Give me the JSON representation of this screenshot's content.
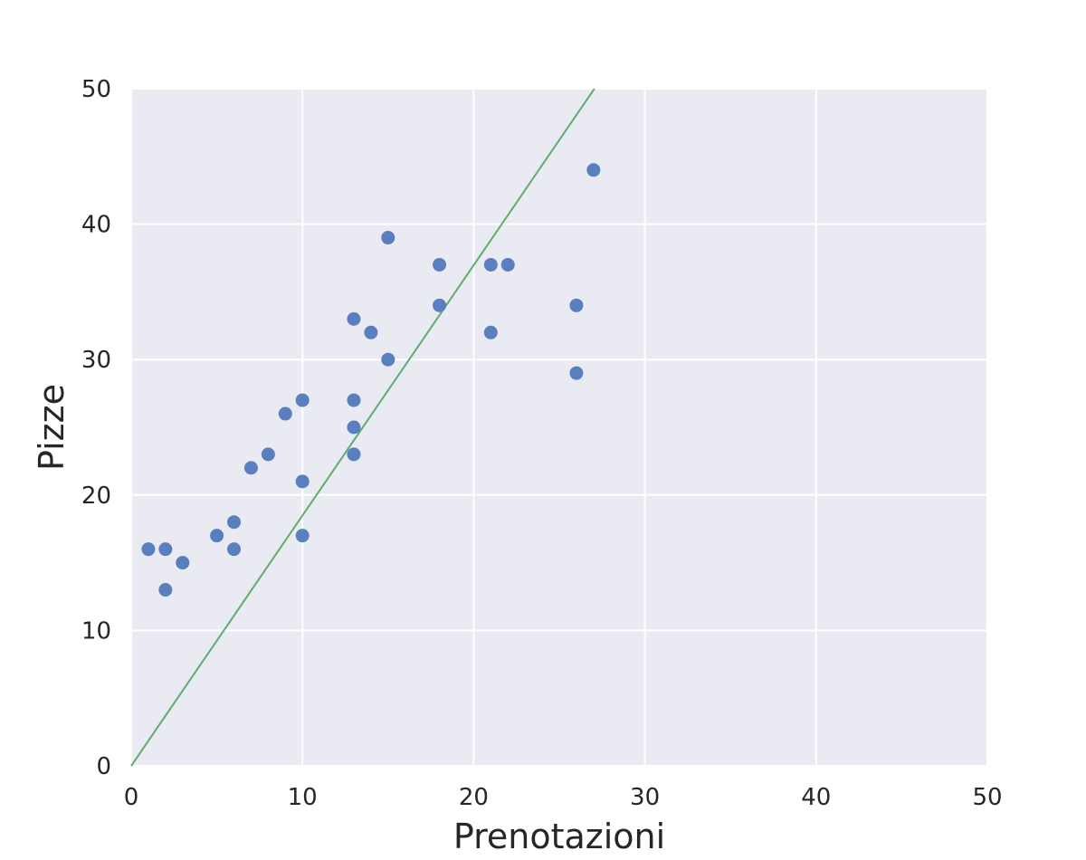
{
  "chart_data": {
    "type": "scatter",
    "xlabel": "Prenotazioni",
    "ylabel": "Pizze",
    "xlim": [
      0,
      50
    ],
    "ylim": [
      0,
      50
    ],
    "xticks": [
      "0",
      "10",
      "20",
      "30",
      "40",
      "50"
    ],
    "yticks": [
      "0",
      "10",
      "20",
      "30",
      "40",
      "50"
    ],
    "grid": true,
    "background_color": "#eaeaf2",
    "series": [
      {
        "type": "scatter",
        "color": "#5a7fbf",
        "points": [
          {
            "x": 1,
            "y": 16
          },
          {
            "x": 2,
            "y": 16
          },
          {
            "x": 2,
            "y": 13
          },
          {
            "x": 3,
            "y": 15
          },
          {
            "x": 5,
            "y": 17
          },
          {
            "x": 6,
            "y": 18
          },
          {
            "x": 6,
            "y": 16
          },
          {
            "x": 7,
            "y": 22
          },
          {
            "x": 8,
            "y": 23
          },
          {
            "x": 9,
            "y": 26
          },
          {
            "x": 10,
            "y": 27
          },
          {
            "x": 10,
            "y": 21
          },
          {
            "x": 10,
            "y": 17
          },
          {
            "x": 13,
            "y": 33
          },
          {
            "x": 13,
            "y": 27
          },
          {
            "x": 13,
            "y": 25
          },
          {
            "x": 13,
            "y": 23
          },
          {
            "x": 14,
            "y": 32
          },
          {
            "x": 15,
            "y": 39
          },
          {
            "x": 15,
            "y": 30
          },
          {
            "x": 18,
            "y": 37
          },
          {
            "x": 18,
            "y": 34
          },
          {
            "x": 21,
            "y": 37
          },
          {
            "x": 21,
            "y": 32
          },
          {
            "x": 22,
            "y": 37
          },
          {
            "x": 26,
            "y": 34
          },
          {
            "x": 26,
            "y": 29
          },
          {
            "x": 27,
            "y": 44
          }
        ]
      },
      {
        "type": "line",
        "color": "#5fad72",
        "points": [
          {
            "x": 0,
            "y": 0
          },
          {
            "x": 27.05,
            "y": 50
          }
        ]
      }
    ]
  }
}
